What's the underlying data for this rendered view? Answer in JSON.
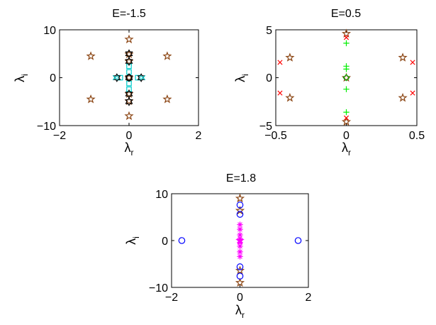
{
  "chart_data": [
    {
      "type": "scatter",
      "title": "E=-1.5",
      "xlabel": "λ",
      "xlabel_sub": "r",
      "ylabel": "λ",
      "ylabel_sub": "i",
      "xlim": [
        -2,
        2
      ],
      "ylim": [
        -10,
        10
      ],
      "xticks": [
        -2,
        0,
        2
      ],
      "yticks": [
        -10,
        0,
        10
      ],
      "xtick_labels": [
        "−2",
        "0",
        "2"
      ],
      "ytick_labels": [
        "−10",
        "0",
        "10"
      ],
      "grid": false,
      "series": [
        {
          "marker": "star",
          "color": "#8b4513",
          "points": [
            [
              0,
              8
            ],
            [
              0,
              4.9
            ],
            [
              0,
              3.4
            ],
            [
              0,
              0
            ],
            [
              0,
              -3.4
            ],
            [
              0,
              -4.9
            ],
            [
              0,
              -8
            ],
            [
              -1.1,
              4.5
            ],
            [
              1.1,
              4.5
            ],
            [
              -1.1,
              -4.5
            ],
            [
              1.1,
              -4.5
            ]
          ]
        },
        {
          "marker": "square",
          "color": "#00cccc",
          "points": [
            [
              0,
              2.4
            ],
            [
              0,
              1.2
            ],
            [
              0,
              -1.2
            ],
            [
              0,
              -2.4
            ],
            [
              -0.25,
              0
            ],
            [
              0.25,
              0
            ]
          ]
        },
        {
          "marker": "hexagram",
          "color": "#000000",
          "points": [
            [
              0,
              5
            ],
            [
              0,
              3.4
            ],
            [
              0,
              0
            ],
            [
              0,
              -3.4
            ],
            [
              0,
              -5
            ],
            [
              -0.35,
              0
            ],
            [
              0.35,
              0
            ]
          ]
        },
        {
          "marker": "x",
          "color": "#00cccc",
          "points": [
            [
              -0.4,
              0
            ],
            [
              0.4,
              0
            ]
          ]
        },
        {
          "marker": "o",
          "color": "#000000",
          "points": [
            [
              0,
              0
            ]
          ]
        }
      ]
    },
    {
      "type": "scatter",
      "title": "E=0.5",
      "xlabel": "λ",
      "xlabel_sub": "r",
      "ylabel": "λ",
      "ylabel_sub": "i",
      "xlim": [
        -0.5,
        0.5
      ],
      "ylim": [
        -5,
        5
      ],
      "xticks": [
        -0.5,
        0,
        0.5
      ],
      "yticks": [
        -5,
        0,
        5
      ],
      "xtick_labels": [
        "−0.5",
        "0",
        "0.5"
      ],
      "ytick_labels": [
        "−5",
        "0",
        "5"
      ],
      "grid": false,
      "series": [
        {
          "marker": "star",
          "color": "#8b4513",
          "points": [
            [
              0,
              4.6
            ],
            [
              0,
              0
            ],
            [
              0,
              -4.6
            ],
            [
              -0.4,
              2.1
            ],
            [
              -0.4,
              -2.1
            ],
            [
              0.4,
              2.1
            ],
            [
              0.4,
              -2.1
            ]
          ]
        },
        {
          "marker": "x",
          "color": "#ff0000",
          "points": [
            [
              0,
              4.2
            ],
            [
              0,
              -4.2
            ],
            [
              -0.47,
              1.6
            ],
            [
              -0.47,
              -1.6
            ],
            [
              0.47,
              1.6
            ],
            [
              0.47,
              -1.6
            ]
          ]
        },
        {
          "marker": "plus",
          "color": "#00ee00",
          "points": [
            [
              0,
              3.6
            ],
            [
              0,
              1.2
            ],
            [
              0,
              0.9
            ],
            [
              0,
              -1.2
            ],
            [
              0,
              -3.6
            ]
          ]
        },
        {
          "marker": "diamond",
          "color": "#00aa00",
          "points": [
            [
              0,
              0
            ]
          ]
        }
      ]
    },
    {
      "type": "scatter",
      "title": "E=1.8",
      "xlabel": "λ",
      "xlabel_sub": "r",
      "ylabel": "λ",
      "ylabel_sub": "i",
      "xlim": [
        -2,
        2
      ],
      "ylim": [
        -10,
        10
      ],
      "xticks": [
        -2,
        0,
        2
      ],
      "yticks": [
        -10,
        0,
        10
      ],
      "xtick_labels": [
        "−2",
        "0",
        "2"
      ],
      "ytick_labels": [
        "−10",
        "0",
        "10"
      ],
      "grid": false,
      "series": [
        {
          "marker": "star",
          "color": "#8b4513",
          "points": [
            [
              0,
              9
            ],
            [
              0,
              6.4
            ],
            [
              0,
              -6.4
            ],
            [
              0,
              -9
            ]
          ]
        },
        {
          "marker": "o",
          "color": "#0000ff",
          "points": [
            [
              0,
              7.6
            ],
            [
              0,
              5.6
            ],
            [
              0,
              -5.6
            ],
            [
              0,
              -7.6
            ],
            [
              -1.7,
              0
            ],
            [
              1.7,
              0
            ]
          ]
        },
        {
          "marker": "asterisk",
          "color": "#ff00ff",
          "points": [
            [
              0,
              3.4
            ],
            [
              0,
              2.4
            ],
            [
              0,
              1.2
            ],
            [
              0,
              0.4
            ],
            [
              0,
              -0.4
            ],
            [
              0,
              -1.2
            ],
            [
              0,
              -2.4
            ],
            [
              0,
              -3.4
            ]
          ]
        },
        {
          "marker": "pentagram",
          "color": "#ff00ff",
          "points": [
            [
              0,
              0
            ]
          ]
        }
      ]
    }
  ]
}
